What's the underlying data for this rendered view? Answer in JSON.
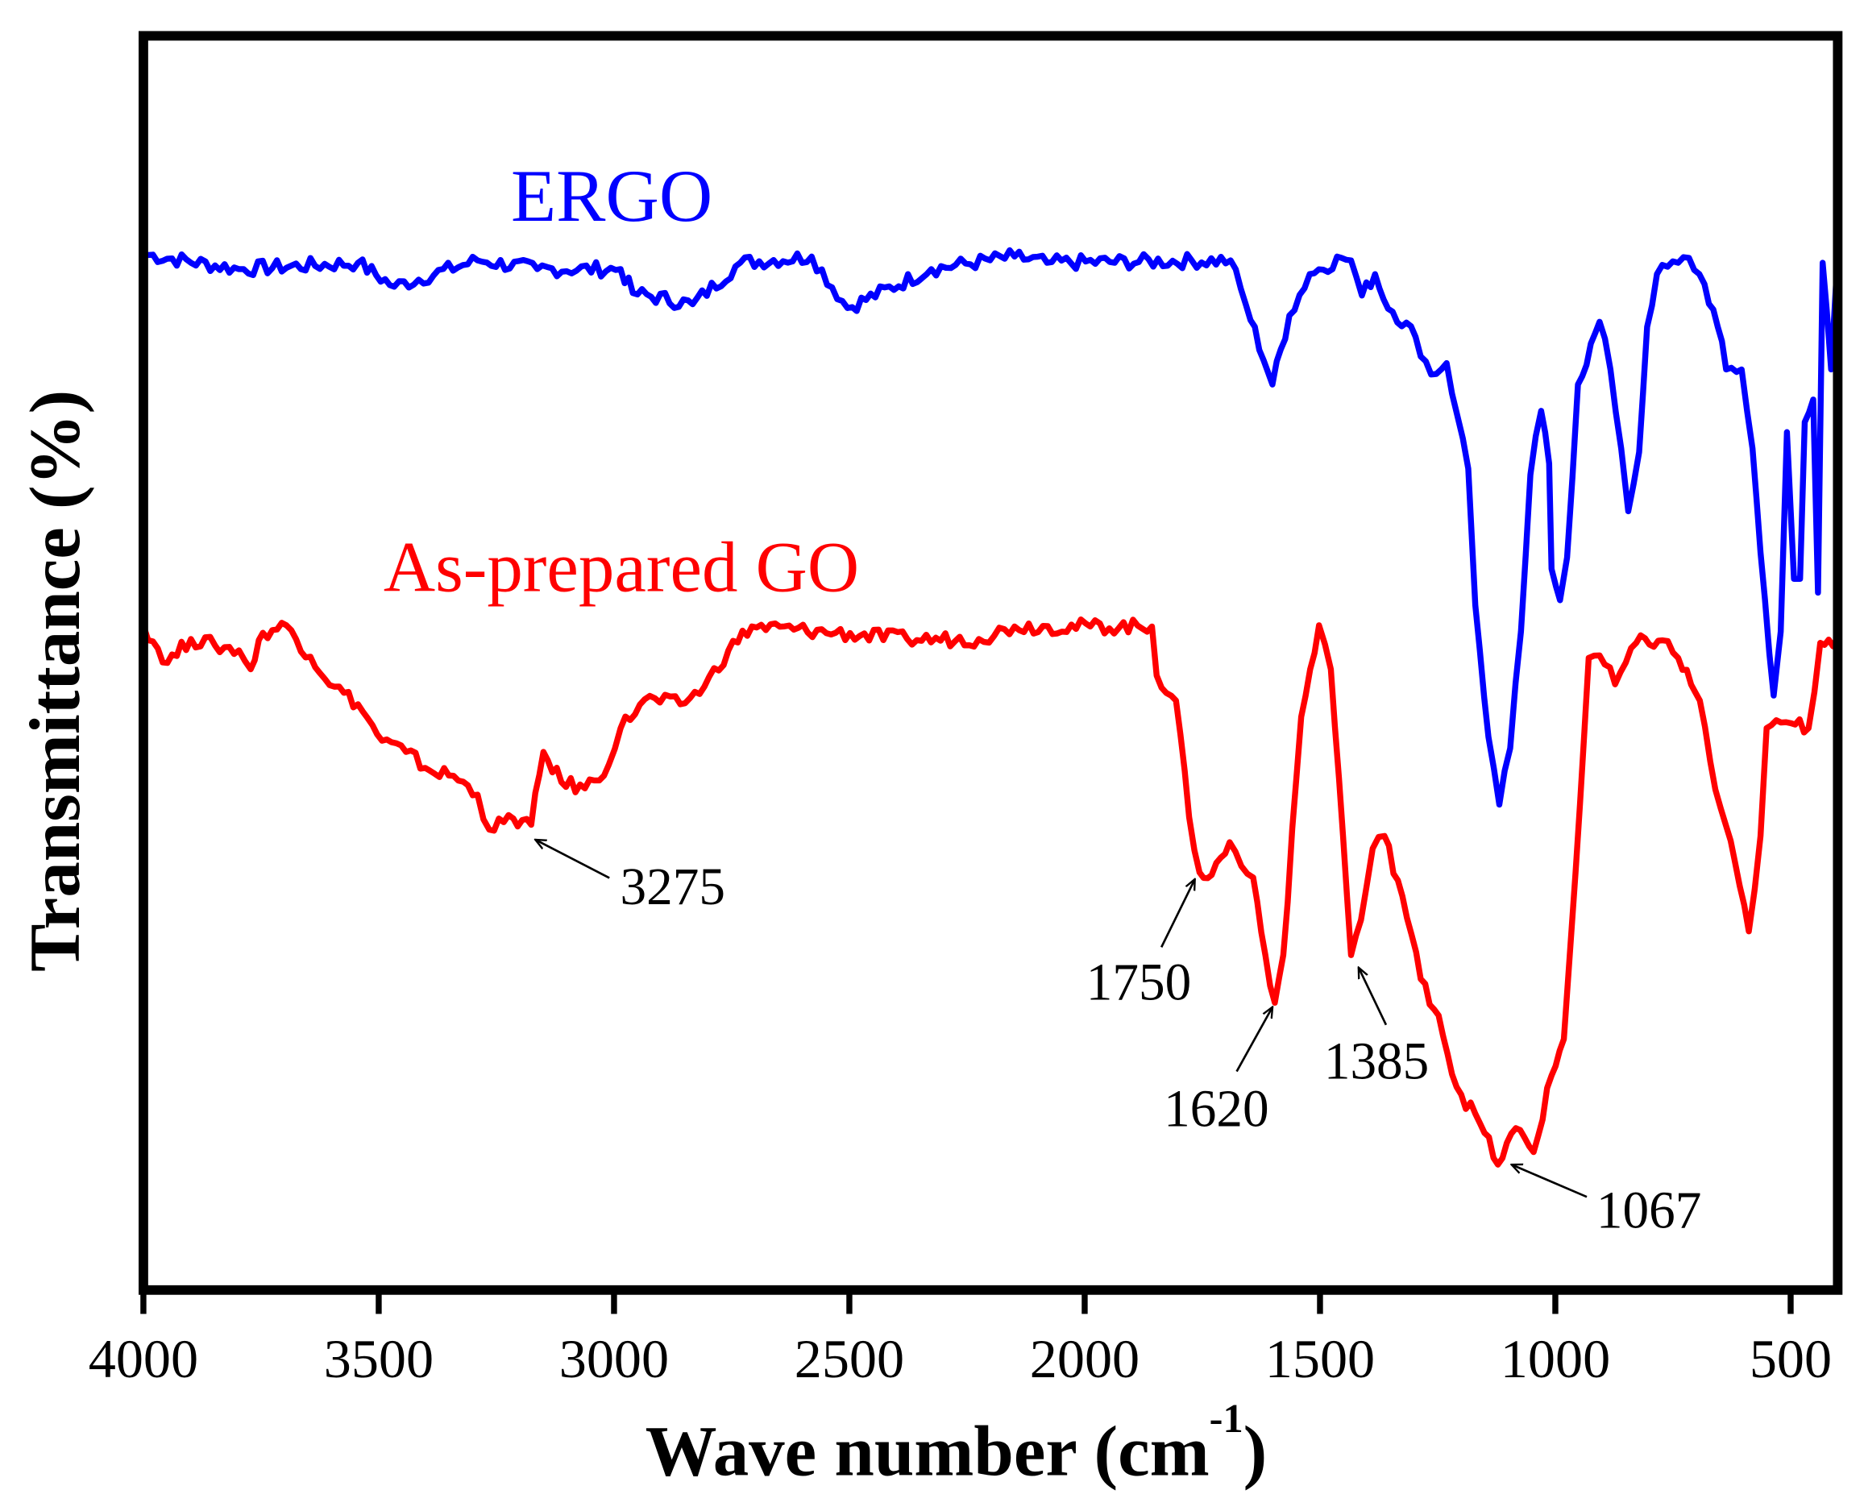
{
  "chart_data": {
    "type": "line",
    "title": "",
    "xlabel": "Wave number (cm",
    "xlabel_sup": "-1",
    "xlabel_close": ")",
    "ylabel": "Transmittance (%)",
    "xlim": [
      4000,
      400
    ],
    "ylim": [
      0,
      100
    ],
    "x_ticks": [
      4000,
      3500,
      3000,
      2500,
      2000,
      1500,
      1000,
      500
    ],
    "y_ticks": [],
    "grid": false,
    "legend": "none",
    "series": [
      {
        "name": "ERGO",
        "color": "#0000ff",
        "points": [
          [
            4000,
            82.6
          ],
          [
            3797,
            81.4
          ],
          [
            3544,
            81.9
          ],
          [
            3467,
            80.0
          ],
          [
            3290,
            82.1
          ],
          [
            3163,
            81.4
          ],
          [
            2986,
            81.4
          ],
          [
            2960,
            79.5
          ],
          [
            2833,
            78.6
          ],
          [
            2732,
            81.9
          ],
          [
            2580,
            82.4
          ],
          [
            2504,
            78.3
          ],
          [
            2326,
            81.4
          ],
          [
            2149,
            82.4
          ],
          [
            2080,
            81.9
          ],
          [
            1690,
            82.1
          ],
          [
            1657,
            78.5
          ],
          [
            1601,
            72.2
          ],
          [
            1565,
            77.7
          ],
          [
            1522,
            81.0
          ],
          [
            1454,
            82.3
          ],
          [
            1434,
            82.1
          ],
          [
            1411,
            79.3
          ],
          [
            1383,
            81.0
          ],
          [
            1365,
            79.0
          ],
          [
            1297,
            76.0
          ],
          [
            1264,
            73.0
          ],
          [
            1231,
            73.9
          ],
          [
            1208,
            69.7
          ],
          [
            1185,
            65.5
          ],
          [
            1170,
            54.6
          ],
          [
            1142,
            44.1
          ],
          [
            1119,
            38.7
          ],
          [
            1096,
            43.2
          ],
          [
            1073,
            52.5
          ],
          [
            1053,
            65.0
          ],
          [
            1030,
            70.1
          ],
          [
            1013,
            65.9
          ],
          [
            1008,
            57.5
          ],
          [
            990,
            55.0
          ],
          [
            975,
            58.4
          ],
          [
            952,
            72.2
          ],
          [
            906,
            77.2
          ],
          [
            883,
            73.4
          ],
          [
            860,
            67.1
          ],
          [
            845,
            62.1
          ],
          [
            822,
            66.8
          ],
          [
            805,
            76.8
          ],
          [
            784,
            81.0
          ],
          [
            739,
            81.9
          ],
          [
            716,
            82.3
          ],
          [
            683,
            80.2
          ],
          [
            655,
            76.8
          ],
          [
            637,
            73.4
          ],
          [
            604,
            73.4
          ],
          [
            581,
            67.1
          ],
          [
            564,
            58.8
          ],
          [
            536,
            47.4
          ],
          [
            521,
            52.5
          ],
          [
            508,
            68.4
          ],
          [
            493,
            56.7
          ],
          [
            480,
            56.7
          ],
          [
            470,
            69.2
          ],
          [
            452,
            71.0
          ],
          [
            442,
            55.6
          ],
          [
            432,
            81.9
          ],
          [
            414,
            73.4
          ],
          [
            401,
            81.9
          ]
        ]
      },
      {
        "name": "As-prepared GO",
        "color": "#ff0000",
        "points": [
          [
            4000,
            53.0
          ],
          [
            3949,
            50.0
          ],
          [
            3899,
            51.9
          ],
          [
            3848,
            51.4
          ],
          [
            3797,
            51.0
          ],
          [
            3772,
            49.5
          ],
          [
            3746,
            52.4
          ],
          [
            3696,
            53.0
          ],
          [
            3645,
            50.5
          ],
          [
            3594,
            48.1
          ],
          [
            3544,
            46.7
          ],
          [
            3493,
            43.8
          ],
          [
            3442,
            42.9
          ],
          [
            3391,
            41.4
          ],
          [
            3341,
            41.0
          ],
          [
            3290,
            39.5
          ],
          [
            3265,
            36.7
          ],
          [
            3214,
            37.6
          ],
          [
            3176,
            37.1
          ],
          [
            3150,
            42.9
          ],
          [
            3112,
            40.5
          ],
          [
            3062,
            40.0
          ],
          [
            3011,
            41.9
          ],
          [
            2986,
            44.8
          ],
          [
            2935,
            47.1
          ],
          [
            2859,
            46.7
          ],
          [
            2808,
            48.1
          ],
          [
            2757,
            51.0
          ],
          [
            2707,
            52.9
          ],
          [
            2529,
            52.4
          ],
          [
            2377,
            51.9
          ],
          [
            2225,
            51.9
          ],
          [
            2149,
            52.9
          ],
          [
            1857,
            52.9
          ],
          [
            1847,
            49.0
          ],
          [
            1806,
            47.0
          ],
          [
            1778,
            37.7
          ],
          [
            1756,
            33.3
          ],
          [
            1730,
            33.1
          ],
          [
            1692,
            35.7
          ],
          [
            1667,
            33.8
          ],
          [
            1642,
            32.9
          ],
          [
            1616,
            26.7
          ],
          [
            1596,
            22.9
          ],
          [
            1578,
            26.7
          ],
          [
            1540,
            45.7
          ],
          [
            1502,
            53.0
          ],
          [
            1477,
            49.5
          ],
          [
            1451,
            36.2
          ],
          [
            1434,
            26.7
          ],
          [
            1413,
            29.5
          ],
          [
            1388,
            35.2
          ],
          [
            1363,
            36.2
          ],
          [
            1325,
            31.4
          ],
          [
            1286,
            24.8
          ],
          [
            1248,
            21.9
          ],
          [
            1210,
            16.2
          ],
          [
            1160,
            13.3
          ],
          [
            1122,
            10.0
          ],
          [
            1084,
            12.9
          ],
          [
            1046,
            11.0
          ],
          [
            1008,
            17.1
          ],
          [
            982,
            20.0
          ],
          [
            957,
            33.3
          ],
          [
            929,
            50.4
          ],
          [
            906,
            50.6
          ],
          [
            873,
            48.3
          ],
          [
            828,
            51.6
          ],
          [
            772,
            51.8
          ],
          [
            739,
            50.4
          ],
          [
            693,
            47.0
          ],
          [
            660,
            39.9
          ],
          [
            637,
            37.0
          ],
          [
            589,
            28.6
          ],
          [
            564,
            36.2
          ],
          [
            551,
            44.8
          ],
          [
            500,
            45.2
          ],
          [
            462,
            44.8
          ],
          [
            437,
            51.6
          ],
          [
            401,
            52.0
          ]
        ]
      }
    ],
    "annotations": [
      {
        "text": "3275",
        "wavenumber": 3275
      },
      {
        "text": "1750",
        "wavenumber": 1750
      },
      {
        "text": "1620",
        "wavenumber": 1620
      },
      {
        "text": "1385",
        "wavenumber": 1385
      },
      {
        "text": "1067",
        "wavenumber": 1067
      }
    ]
  }
}
